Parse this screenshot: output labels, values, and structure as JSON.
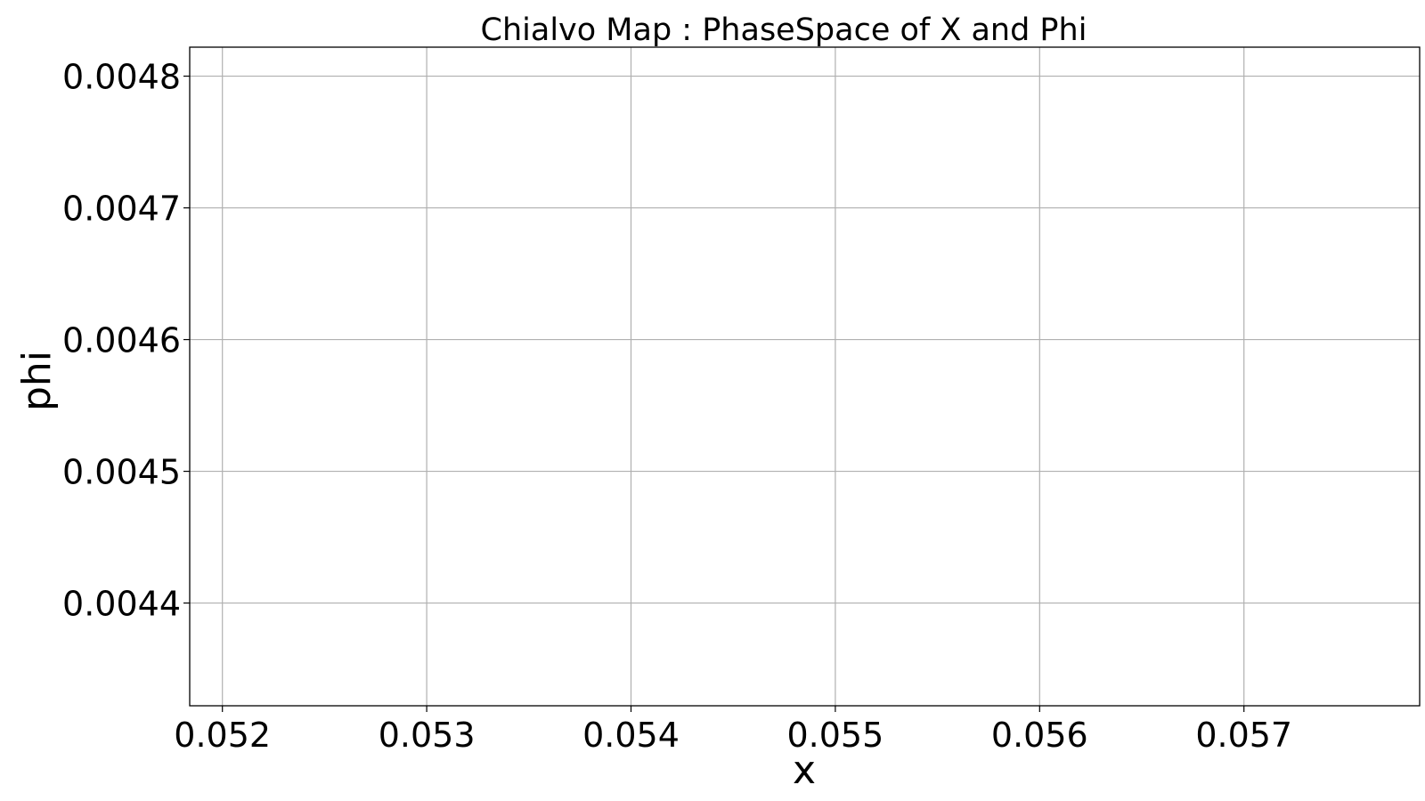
{
  "chart_data": {
    "type": "scatter",
    "title": "Chialvo Map : PhaseSpace of X and Phi",
    "xlabel": "x",
    "ylabel": "phi",
    "xlim": [
      0.05184,
      0.05786
    ],
    "ylim": [
      0.004322,
      0.004822
    ],
    "xticks": [
      0.052,
      0.053,
      0.054,
      0.055,
      0.056,
      0.057
    ],
    "xtick_labels": [
      "0.052",
      "0.053",
      "0.054",
      "0.055",
      "0.056",
      "0.057"
    ],
    "yticks": [
      0.0044,
      0.0045,
      0.0046,
      0.0047,
      0.0048
    ],
    "ytick_labels": [
      "0.0044",
      "0.0045",
      "0.0046",
      "0.0047",
      "0.0048"
    ],
    "grid": true,
    "series": [
      {
        "x": [],
        "y": [],
        "color": "#1f77b4"
      }
    ]
  }
}
